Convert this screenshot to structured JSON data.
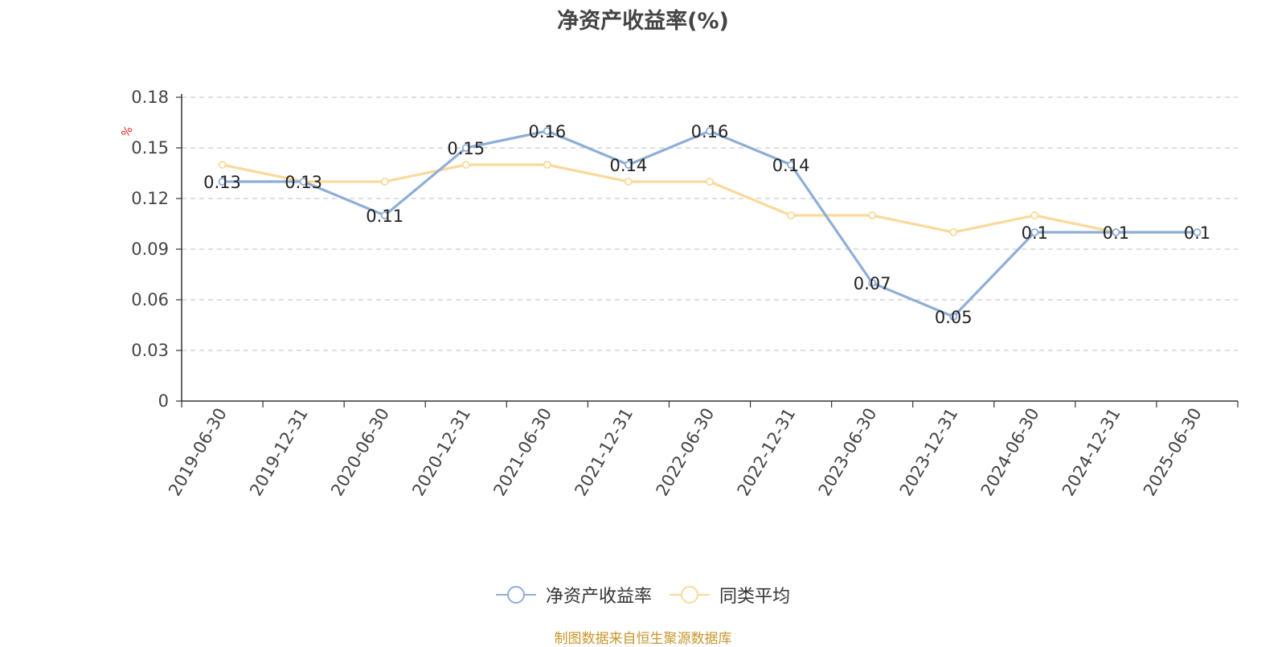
{
  "chart_data": {
    "type": "line",
    "title": "净资产收益率(%)",
    "ylabel": "%",
    "ylim": [
      0,
      0.18
    ],
    "yticks": [
      "0",
      "0.03",
      "0.06",
      "0.09",
      "0.12",
      "0.15",
      "0.18"
    ],
    "categories": [
      "2019-06-30",
      "2019-12-31",
      "2020-06-30",
      "2020-12-31",
      "2021-06-30",
      "2021-12-31",
      "2022-06-30",
      "2022-12-31",
      "2023-06-30",
      "2023-12-31",
      "2024-06-30",
      "2024-12-31",
      "2025-06-30"
    ],
    "series": [
      {
        "name": "净资产收益率",
        "color": "#8eaed8",
        "values": [
          0.13,
          0.13,
          0.11,
          0.15,
          0.16,
          0.14,
          0.16,
          0.14,
          0.07,
          0.05,
          0.1,
          0.1,
          0.1
        ],
        "labels": [
          "0.13",
          "0.13",
          "0.11",
          "0.15",
          "0.16",
          "0.14",
          "0.16",
          "0.14",
          "0.07",
          "0.05",
          "0.1",
          "0.1",
          "0.1"
        ]
      },
      {
        "name": "同类平均",
        "color": "#fbd99b",
        "values": [
          0.14,
          0.13,
          0.13,
          0.14,
          0.14,
          0.13,
          0.13,
          0.11,
          0.11,
          0.1,
          0.11,
          0.1,
          0.1
        ]
      }
    ],
    "grid": true,
    "legend_position": "bottom"
  },
  "footer": {
    "source": "制图数据来自恒生聚源数据库"
  }
}
